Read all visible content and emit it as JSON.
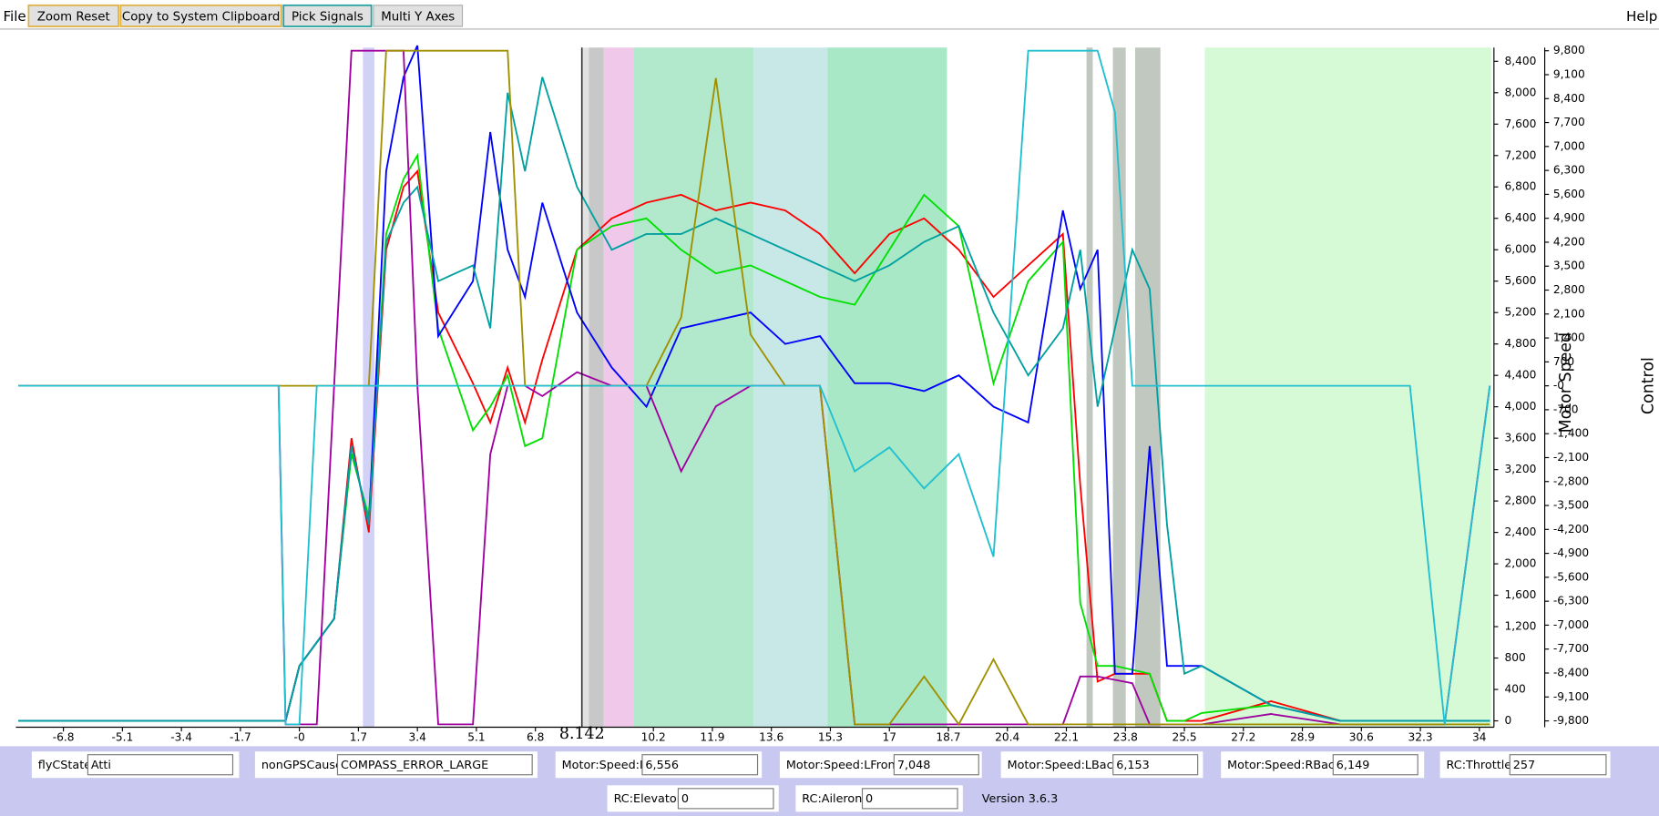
{
  "toolbar": {
    "menu": "File",
    "buttons": [
      "Zoom Reset",
      "Copy to System Clipboard",
      "Pick Signals",
      "Multi Y Axes"
    ],
    "help": "Help"
  },
  "chart_data": {
    "type": "line",
    "y_label": "Motor Speed",
    "y2_label": "Control",
    "xlim": [
      -8.17,
      34.42
    ],
    "ylim": [
      -81,
      8575
    ],
    "y2lim": [
      -9985,
      9893
    ],
    "xticks": [
      -6.8,
      -5.1,
      -3.4,
      -1.7,
      {
        "value": 0,
        "label": "-0"
      },
      1.7,
      3.4,
      5.1,
      6.8,
      10.2,
      11.9,
      13.6,
      15.3,
      17,
      18.7,
      20.4,
      22.1,
      23.8,
      25.5,
      27.2,
      28.9,
      30.6,
      32.3,
      34
    ],
    "yticks": [
      0,
      400,
      800,
      {
        "value": 1200,
        "label": "1,200"
      },
      {
        "value": 1600,
        "label": "1,600"
      },
      {
        "value": 2000,
        "label": "2,000"
      },
      {
        "value": 2400,
        "label": "2,400"
      },
      {
        "value": 2800,
        "label": "2,800"
      },
      {
        "value": 3200,
        "label": "3,200"
      },
      {
        "value": 3600,
        "label": "3,600"
      },
      {
        "value": 4000,
        "label": "4,000"
      },
      {
        "value": 4400,
        "label": "4,400"
      },
      {
        "value": 4800,
        "label": "4,800"
      },
      {
        "value": 5200,
        "label": "5,200"
      },
      {
        "value": 5600,
        "label": "5,600"
      },
      {
        "value": 6000,
        "label": "6,000"
      },
      {
        "value": 6400,
        "label": "6,400"
      },
      {
        "value": 6800,
        "label": "6,800"
      },
      {
        "value": 7200,
        "label": "7,200"
      },
      {
        "value": 7600,
        "label": "7,600"
      },
      {
        "value": 8000,
        "label": "8,000"
      },
      {
        "value": 8400,
        "label": "8,400"
      }
    ],
    "y2ticks": [
      {
        "value": -9800,
        "label": "-9,800"
      },
      {
        "value": -9100,
        "label": "-9,100"
      },
      {
        "value": -8400,
        "label": "-8,400"
      },
      {
        "value": -7700,
        "label": "-7,700"
      },
      {
        "value": -7000,
        "label": "-7,000"
      },
      {
        "value": -6300,
        "label": "-6,300"
      },
      {
        "value": -5600,
        "label": "-5,600"
      },
      {
        "value": -4900,
        "label": "-4,900"
      },
      {
        "value": -4200,
        "label": "-4,200"
      },
      {
        "value": -3500,
        "label": "-3,500"
      },
      {
        "value": -2800,
        "label": "-2,800"
      },
      {
        "value": -2100,
        "label": "-2,100"
      },
      {
        "value": -1400,
        "label": "-1,400"
      },
      -700,
      {
        "value": 0,
        "label": "-0"
      },
      700,
      {
        "value": 1400,
        "label": "1,400"
      },
      {
        "value": 2100,
        "label": "2,100"
      },
      {
        "value": 2800,
        "label": "2,800"
      },
      {
        "value": 3500,
        "label": "3,500"
      },
      {
        "value": 4200,
        "label": "4,200"
      },
      {
        "value": 4900,
        "label": "4,900"
      },
      {
        "value": 5600,
        "label": "5,600"
      },
      {
        "value": 6300,
        "label": "6,300"
      },
      {
        "value": 7000,
        "label": "7,000"
      },
      {
        "value": 7700,
        "label": "7,700"
      },
      {
        "value": 8400,
        "label": "8,400"
      },
      {
        "value": 9100,
        "label": "9,100"
      },
      {
        "value": 9800,
        "label": "9,800"
      }
    ],
    "cursor": 8.142,
    "bands": [
      {
        "x0": 1.83,
        "x1": 2.16,
        "color": "#d2d2f6"
      },
      {
        "x0": 8.1,
        "x1": 8.34,
        "color": "#e2e2e2"
      },
      {
        "x0": 8.34,
        "x1": 8.77,
        "color": "#c8c8c8"
      },
      {
        "x0": 8.77,
        "x1": 9.62,
        "color": "#efc8ea"
      },
      {
        "x0": 9.62,
        "x1": 13.09,
        "color": "#b2e8cc"
      },
      {
        "x0": 13.09,
        "x1": 15.22,
        "color": "#c8e8e8"
      },
      {
        "x0": 15.22,
        "x1": 18.66,
        "color": "#a8e8c6"
      },
      {
        "x0": 22.68,
        "x1": 22.86,
        "color": "#c0c8c0"
      },
      {
        "x0": 23.44,
        "x1": 23.81,
        "color": "#c0c8c0"
      },
      {
        "x0": 24.08,
        "x1": 24.81,
        "color": "#c0c8c0"
      },
      {
        "x0": 26.09,
        "x1": 34.34,
        "color": "#d6f9d6"
      }
    ],
    "x": [
      -8.1,
      -0.6,
      -0.4,
      0,
      0.5,
      1,
      1.5,
      2,
      2.5,
      3,
      3.4,
      4,
      5,
      5.5,
      6,
      6.5,
      7,
      8,
      9,
      10,
      11,
      12,
      13,
      14,
      15,
      16,
      17,
      18,
      19,
      20,
      21,
      22,
      22.5,
      23,
      23.5,
      24,
      24.5,
      25,
      25.5,
      26,
      28,
      30,
      32,
      33,
      34.3
    ],
    "series": [
      {
        "name": "Motor:Speed:RFront",
        "color": "#ff0000",
        "values": [
          0,
          0,
          0,
          700,
          1000,
          1300,
          3600,
          2400,
          6000,
          6800,
          7000,
          5200,
          4300,
          3800,
          4500,
          3800,
          4600,
          6000,
          6400,
          6600,
          6700,
          6500,
          6600,
          6500,
          6200,
          5700,
          6200,
          6400,
          6000,
          5400,
          5800,
          6200,
          3000,
          500,
          600,
          600,
          600,
          0,
          0,
          0,
          250,
          0,
          0,
          0,
          0
        ]
      },
      {
        "name": "Motor:Speed:LFront",
        "color": "#00e000",
        "values": [
          0,
          0,
          0,
          700,
          1000,
          1300,
          3400,
          2600,
          6200,
          6900,
          7200,
          5000,
          3700,
          4000,
          4400,
          3500,
          3600,
          6000,
          6300,
          6400,
          6000,
          5700,
          5800,
          5600,
          5400,
          5300,
          6000,
          6700,
          6300,
          4300,
          5600,
          6100,
          1500,
          700,
          700,
          650,
          600,
          0,
          0,
          100,
          200,
          0,
          0,
          0,
          0
        ]
      },
      {
        "name": "Motor:Speed:LBack",
        "color": "#0000ff",
        "values": [
          0,
          0,
          0,
          700,
          1000,
          1300,
          3500,
          2500,
          7000,
          8200,
          8600,
          4900,
          5600,
          7500,
          6000,
          5400,
          6600,
          5200,
          4500,
          4000,
          5000,
          5100,
          5200,
          4800,
          4900,
          4300,
          4300,
          4200,
          4400,
          4000,
          3800,
          6500,
          5500,
          6000,
          600,
          600,
          3500,
          700,
          700,
          700,
          200,
          0,
          0,
          0,
          0
        ]
      },
      {
        "name": "Motor:Speed:RBack",
        "color": "#00a0a0",
        "values": [
          0,
          0,
          0,
          700,
          1000,
          1300,
          3500,
          2500,
          6100,
          6600,
          6800,
          5600,
          5800,
          5000,
          8000,
          7000,
          8200,
          6800,
          6000,
          6200,
          6200,
          6400,
          6200,
          6000,
          5800,
          5600,
          5800,
          6100,
          6300,
          5200,
          4400,
          5000,
          6000,
          4000,
          5000,
          6000,
          5500,
          2500,
          600,
          700,
          200,
          0,
          0,
          0,
          0
        ]
      },
      {
        "name": "RC:Throttle",
        "color": "#a000a0",
        "axis": "y2",
        "values": [
          0,
          0,
          -9900,
          -9900,
          -9900,
          0,
          9800,
          9800,
          9800,
          9800,
          0,
          -9900,
          -9900,
          -2000,
          0,
          0,
          -300,
          400,
          0,
          0,
          -2500,
          -600,
          0,
          0,
          0,
          -9900,
          -9900,
          -9900,
          -9900,
          -9900,
          -9900,
          -9900,
          -8500,
          -8500,
          -8600,
          -8700,
          -9900,
          -9900,
          -9900,
          -9900,
          -9600,
          -9900,
          -9900,
          -9900,
          0
        ]
      },
      {
        "name": "RC:Elevator",
        "color": "#a09000",
        "axis": "y2",
        "values": [
          0,
          0,
          0,
          0,
          0,
          0,
          0,
          0,
          9800,
          9800,
          9800,
          9800,
          9800,
          9800,
          9800,
          0,
          0,
          0,
          0,
          0,
          2000,
          9000,
          1500,
          0,
          0,
          -9900,
          -9900,
          -8500,
          -9900,
          -8000,
          -9900,
          -9900,
          -9900,
          -9900,
          -9900,
          -9900,
          -9900,
          -9900,
          -9900,
          -9900,
          -9900,
          -9900,
          -9900,
          -9900,
          -9900
        ]
      },
      {
        "name": "RC:Aileron",
        "color": "#20c0d0",
        "axis": "y2",
        "values": [
          0,
          0,
          -9900,
          -9900,
          0,
          0,
          0,
          0,
          0,
          0,
          0,
          0,
          0,
          0,
          0,
          0,
          0,
          0,
          0,
          0,
          0,
          0,
          0,
          0,
          0,
          -2500,
          -1800,
          -3000,
          -2000,
          -5000,
          9800,
          9800,
          9800,
          9800,
          8000,
          0,
          0,
          0,
          0,
          0,
          0,
          0,
          0,
          -9900,
          0
        ]
      }
    ]
  },
  "status_panel": {
    "fields": [
      {
        "label": "flyCState",
        "value": "Atti",
        "color": "#000000"
      },
      {
        "label": "nonGPSCause",
        "value": "COMPASS_ERROR_LARGE",
        "color": "#000000"
      },
      {
        "label": "Motor:Speed:RFront",
        "value": "6,556",
        "color": "#ff0000"
      },
      {
        "label": "Motor:Speed:LFront",
        "value": "7,048",
        "color": "#00e000"
      },
      {
        "label": "Motor:Speed:LBack",
        "value": "6,153",
        "color": "#0000ff"
      },
      {
        "label": "Motor:Speed:RBack",
        "value": "6,149",
        "color": "#00a0a0"
      },
      {
        "label": "RC:Throttle",
        "value": "257",
        "color": "#a000a0"
      },
      {
        "label": "RC:Elevator",
        "value": "0",
        "color": "#a09000"
      },
      {
        "label": "RC:Aileron",
        "value": "0",
        "color": "#20c0d0"
      }
    ],
    "version": "Version 3.6.3"
  }
}
